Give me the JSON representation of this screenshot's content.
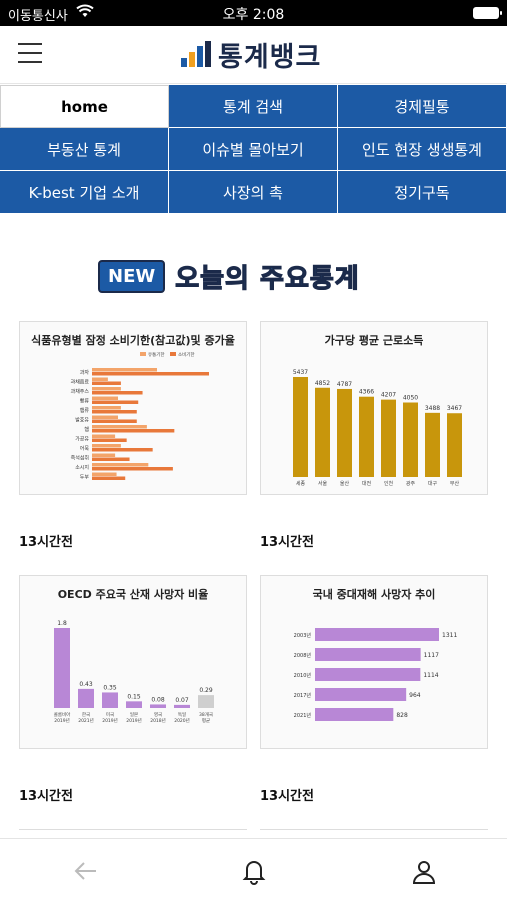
{
  "status_bar": {
    "carrier": "이동통신사",
    "time": "오후 2:08"
  },
  "header": {
    "logo_text": "통계뱅크",
    "icons": {
      "menu": "hamburger-icon",
      "logo": "bar-chart-logo"
    }
  },
  "nav": {
    "items": [
      {
        "label": "home",
        "active": true
      },
      {
        "label": "통계 검색"
      },
      {
        "label": "경제필통"
      },
      {
        "label": "부동산 통계"
      },
      {
        "label": "이슈별 몰아보기"
      },
      {
        "label": "인도 현장 생생통계"
      },
      {
        "label": "K-best 기업 소개"
      },
      {
        "label": "사장의 촉"
      },
      {
        "label": "정기구독"
      }
    ]
  },
  "banner": {
    "badge": "NEW",
    "title": "오늘의 주요통계"
  },
  "cards": [
    {
      "title": "식품유형별 잠정 소비기한(참고값)및 증가율",
      "time": "13시간전"
    },
    {
      "title": "가구당 평균 근로소득",
      "time": "13시간전"
    },
    {
      "title": "OECD 주요국 산재 사망자 비율",
      "time": "13시간전"
    },
    {
      "title": "국내 중대재해 사망자 추이",
      "time": "13시간전"
    }
  ],
  "chart_data": [
    {
      "type": "bar",
      "title": "식품유형별 잠정 소비기한(참고값)및 증가율",
      "orientation": "horizontal",
      "categories": [
        "과자",
        "과채음료",
        "과채주스",
        "빵류",
        "햄류",
        "발효유",
        "햄",
        "가공유",
        "어묵",
        "즉석섭취",
        "소시지",
        "두부"
      ],
      "series": [
        {
          "name": "유통기한",
          "values": [
            45,
            11,
            20,
            18,
            20,
            18,
            38,
            16,
            20,
            16,
            39,
            17
          ]
        },
        {
          "name": "소비기한",
          "values": [
            81,
            20,
            35,
            32,
            31,
            31,
            57,
            24,
            42,
            26,
            56,
            23
          ]
        }
      ],
      "colors": [
        "#e8783a",
        "#f3a46a"
      ]
    },
    {
      "type": "bar",
      "title": "가구당 평균 근로소득",
      "categories": [
        "세종",
        "서울",
        "울산",
        "대전",
        "인천",
        "광주",
        "대구",
        "부산"
      ],
      "values": [
        5437,
        4852,
        4787,
        4366,
        4207,
        4050,
        3488,
        3467
      ],
      "colors": [
        "#c8960c"
      ]
    },
    {
      "type": "bar",
      "title": "OECD 주요국 산재 사망자 비율",
      "categories": [
        "콜롬비아 2019년",
        "한국 2021년",
        "미국 2019년",
        "일본 2019년",
        "영국 2018년",
        "독일 2020년",
        "38개국 평균"
      ],
      "values": [
        1.8,
        0.43,
        0.35,
        0.15,
        0.08,
        0.07,
        0.29
      ],
      "colors": [
        "#b887d6",
        "#cfcfcf"
      ]
    },
    {
      "type": "bar",
      "title": "국내 중대재해 사망자 추이",
      "orientation": "horizontal",
      "categories": [
        "2003년",
        "2008년",
        "2010년",
        "2017년",
        "2021년"
      ],
      "values": [
        1311,
        1117,
        1114,
        964,
        828
      ],
      "colors": [
        "#b887d6"
      ]
    }
  ],
  "bottom_bar": {
    "icons": [
      "back-arrow-icon",
      "bell-icon",
      "person-icon"
    ]
  },
  "colors": {
    "nav_blue": "#1c5aa5",
    "brand_dark": "#1b2a4a"
  }
}
